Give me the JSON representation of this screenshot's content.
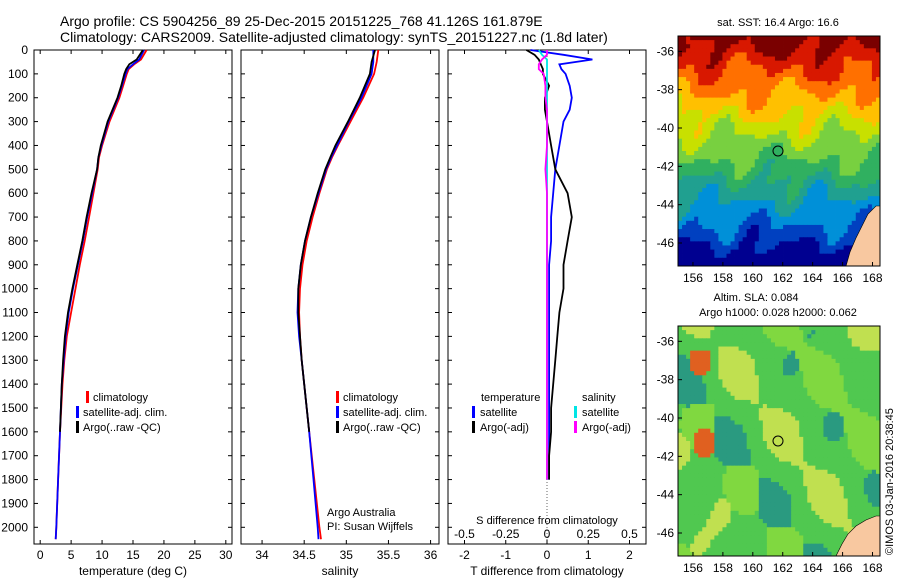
{
  "header": {
    "line1": "Argo profile: CS 5904256_89 25-Dec-2015 20151225_768 41.126S 161.879E",
    "line2": "Climatology: CARS2009. Satellite-adjusted climatology: synTS_20151227.nc (1.8d later)"
  },
  "depth_ticks": [
    "0",
    "100",
    "200",
    "300",
    "400",
    "500",
    "600",
    "700",
    "800",
    "900",
    "1000",
    "1100",
    "1200",
    "1300",
    "1400",
    "1500",
    "1600",
    "1700",
    "1800",
    "1900",
    "2000"
  ],
  "colors": {
    "climatology": "#ff0000",
    "satellite": "#0000ff",
    "argo": "#000000",
    "satellite_salinity": "#00e5e5",
    "argo_salinity": "#ff00ff"
  },
  "credits": {
    "org": "Argo Australia",
    "pi": "PI: Susan Wijffels",
    "stamp": "©IMOS 03-Jan-2016 20:38:45"
  },
  "chart_data": [
    {
      "type": "line",
      "panel": "temperature",
      "xlabel": "temperature (deg C)",
      "ylabel": "",
      "xlim": [
        -1,
        31
      ],
      "ylim": [
        2070,
        0
      ],
      "xticks": [
        "0",
        "5",
        "10",
        "15",
        "20",
        "25",
        "30"
      ],
      "legend": [
        "climatology",
        "satellite-adj. clim.",
        "Argo(..raw -QC)"
      ],
      "y": [
        0,
        40,
        60,
        80,
        100,
        150,
        200,
        300,
        400,
        450,
        500,
        600,
        700,
        800,
        900,
        1000,
        1100,
        1200,
        1300,
        1400,
        1600,
        1800,
        2000,
        2050
      ],
      "series": [
        {
          "name": "climatology",
          "x": [
            17.2,
            16.3,
            15.2,
            14.3,
            14.0,
            13.4,
            12.8,
            11.2,
            10.0,
            9.5,
            9.3,
            8.6,
            7.9,
            7.2,
            6.4,
            5.7,
            5.0,
            4.3,
            3.9,
            3.6,
            3.2,
            2.9,
            2.6,
            2.5
          ]
        },
        {
          "name": "satellite-adj. clim.",
          "x": [
            16.8,
            16.0,
            15.0,
            14.1,
            13.8,
            13.2,
            12.6,
            11.0,
            9.9,
            9.4,
            9.2,
            8.4,
            7.6,
            6.9,
            6.1,
            5.3,
            4.6,
            4.1,
            3.8,
            3.5,
            3.2,
            2.9,
            2.6,
            2.5
          ]
        },
        {
          "name": "Argo(..raw -QC)",
          "x": [
            16.6,
            15.6,
            14.4,
            13.9,
            13.6,
            13.1,
            12.5,
            10.9,
            9.8,
            9.4,
            9.2,
            8.3,
            7.5,
            6.8,
            6.0,
            5.2,
            4.5,
            4.0,
            3.7,
            3.5,
            3.2,
            null,
            null,
            null
          ]
        }
      ]
    },
    {
      "type": "line",
      "panel": "salinity",
      "xlabel": "salinity",
      "ylabel": "",
      "xlim": [
        33.75,
        36.1
      ],
      "ylim": [
        2070,
        0
      ],
      "xticks": [
        "34",
        "34.5",
        "35",
        "35.5",
        "36"
      ],
      "legend": [
        "climatology",
        "satellite-adj. clim.",
        "Argo(..raw -QC)"
      ],
      "y": [
        0,
        50,
        100,
        200,
        300,
        400,
        450,
        500,
        600,
        700,
        800,
        900,
        1000,
        1100,
        1200,
        1300,
        1400,
        1500,
        1600,
        1800,
        2000,
        2050
      ],
      "series": [
        {
          "name": "climatology",
          "x": [
            35.38,
            35.36,
            35.33,
            35.2,
            35.05,
            34.9,
            34.83,
            34.77,
            34.68,
            34.6,
            34.53,
            34.48,
            34.45,
            34.44,
            34.45,
            34.47,
            34.5,
            34.53,
            34.56,
            34.62,
            34.68,
            34.7
          ]
        },
        {
          "name": "satellite-adj. clim.",
          "x": [
            35.32,
            35.32,
            35.3,
            35.18,
            35.03,
            34.89,
            34.82,
            34.76,
            34.67,
            34.58,
            34.51,
            34.46,
            34.43,
            34.42,
            34.44,
            34.47,
            34.5,
            34.53,
            34.56,
            34.61,
            34.66,
            34.67
          ]
        },
        {
          "name": "Argo(..raw -QC)",
          "x": [
            35.34,
            35.3,
            35.28,
            35.16,
            35.02,
            34.87,
            34.81,
            34.75,
            34.66,
            34.58,
            34.51,
            34.46,
            34.43,
            34.43,
            34.45,
            34.47,
            34.5,
            34.53,
            34.56,
            null,
            null,
            null
          ]
        }
      ]
    },
    {
      "type": "line",
      "panel": "difference",
      "xlabel": "T difference from climatology",
      "ylabel": "",
      "xlim": [
        -2.4,
        2.4
      ],
      "ylim": [
        2070,
        0
      ],
      "xticks": [
        "-2",
        "-1",
        "0",
        "1",
        "2"
      ],
      "xticks_s": [
        "-0.5",
        "-0.25",
        "0",
        "0.25",
        "0.5"
      ],
      "x2label": "S difference from climatology",
      "legend_headers": [
        "temperature",
        "salinity"
      ],
      "legend": [
        "satellite",
        "Argo(-adj)",
        "satellite",
        "Argo(-adj)"
      ],
      "y": [
        0,
        20,
        40,
        60,
        80,
        100,
        150,
        200,
        250,
        300,
        400,
        500,
        600,
        700,
        800,
        900,
        1000,
        1100,
        1200,
        1300,
        1400,
        1500,
        1600,
        1700,
        1800
      ],
      "series": [
        {
          "name": "satellite",
          "quantity": "temperature",
          "x": [
            -0.4,
            0.4,
            1.1,
            0.3,
            0.35,
            0.45,
            0.55,
            0.6,
            0.55,
            0.4,
            0.3,
            0.2,
            0.15,
            0.1,
            0.1,
            0.05,
            0.05,
            0.05,
            0.05,
            0.05,
            0.05,
            0.05,
            0.05,
            0.05,
            0.05
          ]
        },
        {
          "name": "Argo(-adj)",
          "quantity": "temperature",
          "x": [
            -0.5,
            -0.3,
            -0.2,
            -0.15,
            -0.1,
            -0.1,
            0.05,
            -0.05,
            -0.05,
            0.0,
            0.1,
            0.2,
            0.5,
            0.6,
            0.5,
            0.4,
            0.4,
            0.3,
            0.25,
            0.2,
            0.15,
            0.1,
            0.1,
            0.05,
            0.05
          ]
        },
        {
          "name": "satellite",
          "quantity": "salinity",
          "x": [
            -0.05,
            -0.03,
            0.0,
            0.0,
            0.0,
            0.0,
            0.0,
            0.0,
            0.0,
            0.0,
            0.0,
            0.0,
            0.0,
            0.0,
            0.0,
            0.0,
            0.0,
            0.0,
            0.0,
            0.0,
            0.0,
            0.0,
            0.0,
            0.0,
            0.0
          ]
        },
        {
          "name": "Argo(-adj)",
          "quantity": "salinity",
          "x": [
            0.0,
            0.0,
            -0.03,
            -0.05,
            -0.05,
            -0.02,
            -0.01,
            -0.01,
            0.0,
            0.0,
            0.0,
            -0.01,
            0.0,
            0.0,
            0.0,
            0.0,
            0.0,
            0.0,
            0.0,
            0.0,
            0.0,
            0.0,
            0.0,
            0.0,
            0.0
          ]
        }
      ]
    },
    {
      "type": "heatmap",
      "panel": "sst-map",
      "title": "sat. SST: 16.4  Argo: 16.6",
      "xlim": [
        155,
        168.5
      ],
      "ylim": [
        -47.2,
        -35.2
      ],
      "xticks": [
        "156",
        "158",
        "160",
        "162",
        "164",
        "166",
        "168"
      ],
      "yticks": [
        "-36",
        "-38",
        "-40",
        "-42",
        "-44",
        "-46"
      ],
      "marker": {
        "lon": 161.879,
        "lat": -41.126
      },
      "colors": [
        "#7a0000",
        "#d81800",
        "#ff7000",
        "#ffc000",
        "#c8e000",
        "#78d040",
        "#30b060",
        "#20a090",
        "#0090d8",
        "#0040c0",
        "#000090"
      ]
    },
    {
      "type": "heatmap",
      "panel": "sla-map",
      "title": "Altim. SLA: 0.084",
      "subtitle": "Argo h1000: 0.028 h2000: 0.062",
      "xlim": [
        155,
        168.5
      ],
      "ylim": [
        -47.2,
        -35.2
      ],
      "xticks": [
        "156",
        "158",
        "160",
        "162",
        "164",
        "166",
        "168"
      ],
      "yticks": [
        "-36",
        "-38",
        "-40",
        "-42",
        "-44",
        "-46"
      ],
      "marker": {
        "lon": 161.879,
        "lat": -41.126
      },
      "colors": [
        "#50c850",
        "#80d840",
        "#c0e050",
        "#2a9a80",
        "#e06020"
      ]
    }
  ]
}
